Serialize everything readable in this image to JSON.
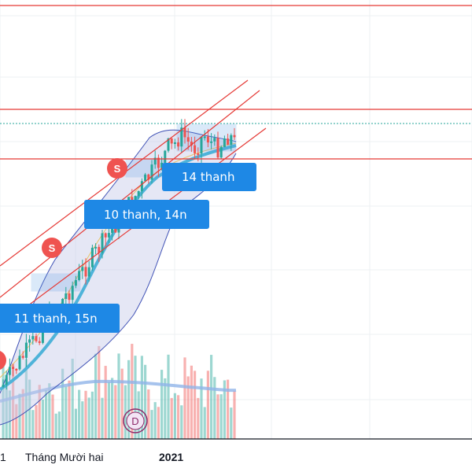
{
  "chart_data": {
    "type": "candlestick",
    "x_axis": {
      "tick_labels": [
        "1",
        "Tháng Mười hai",
        "2021"
      ]
    },
    "annotations": [
      {
        "text": "11 thanh, 15n"
      },
      {
        "text": "10 thanh, 14n"
      },
      {
        "text": "14 thanh"
      }
    ],
    "markers": [
      {
        "text": "S"
      },
      {
        "text": "S"
      },
      {
        "text": "S"
      }
    ],
    "dividend_marker": {
      "text": "D"
    },
    "colors": {
      "up": "#26a69a",
      "down": "#ef5350",
      "trend_lines": "#e53935",
      "bollinger": "#3f51b5",
      "bollinger_fill": "#c5cae9",
      "moving_average": "#4fb3d9",
      "volume_ma": "#90b4e8",
      "label_box": "#1e88e5",
      "last_price": "#26a69a"
    },
    "grid": true
  }
}
